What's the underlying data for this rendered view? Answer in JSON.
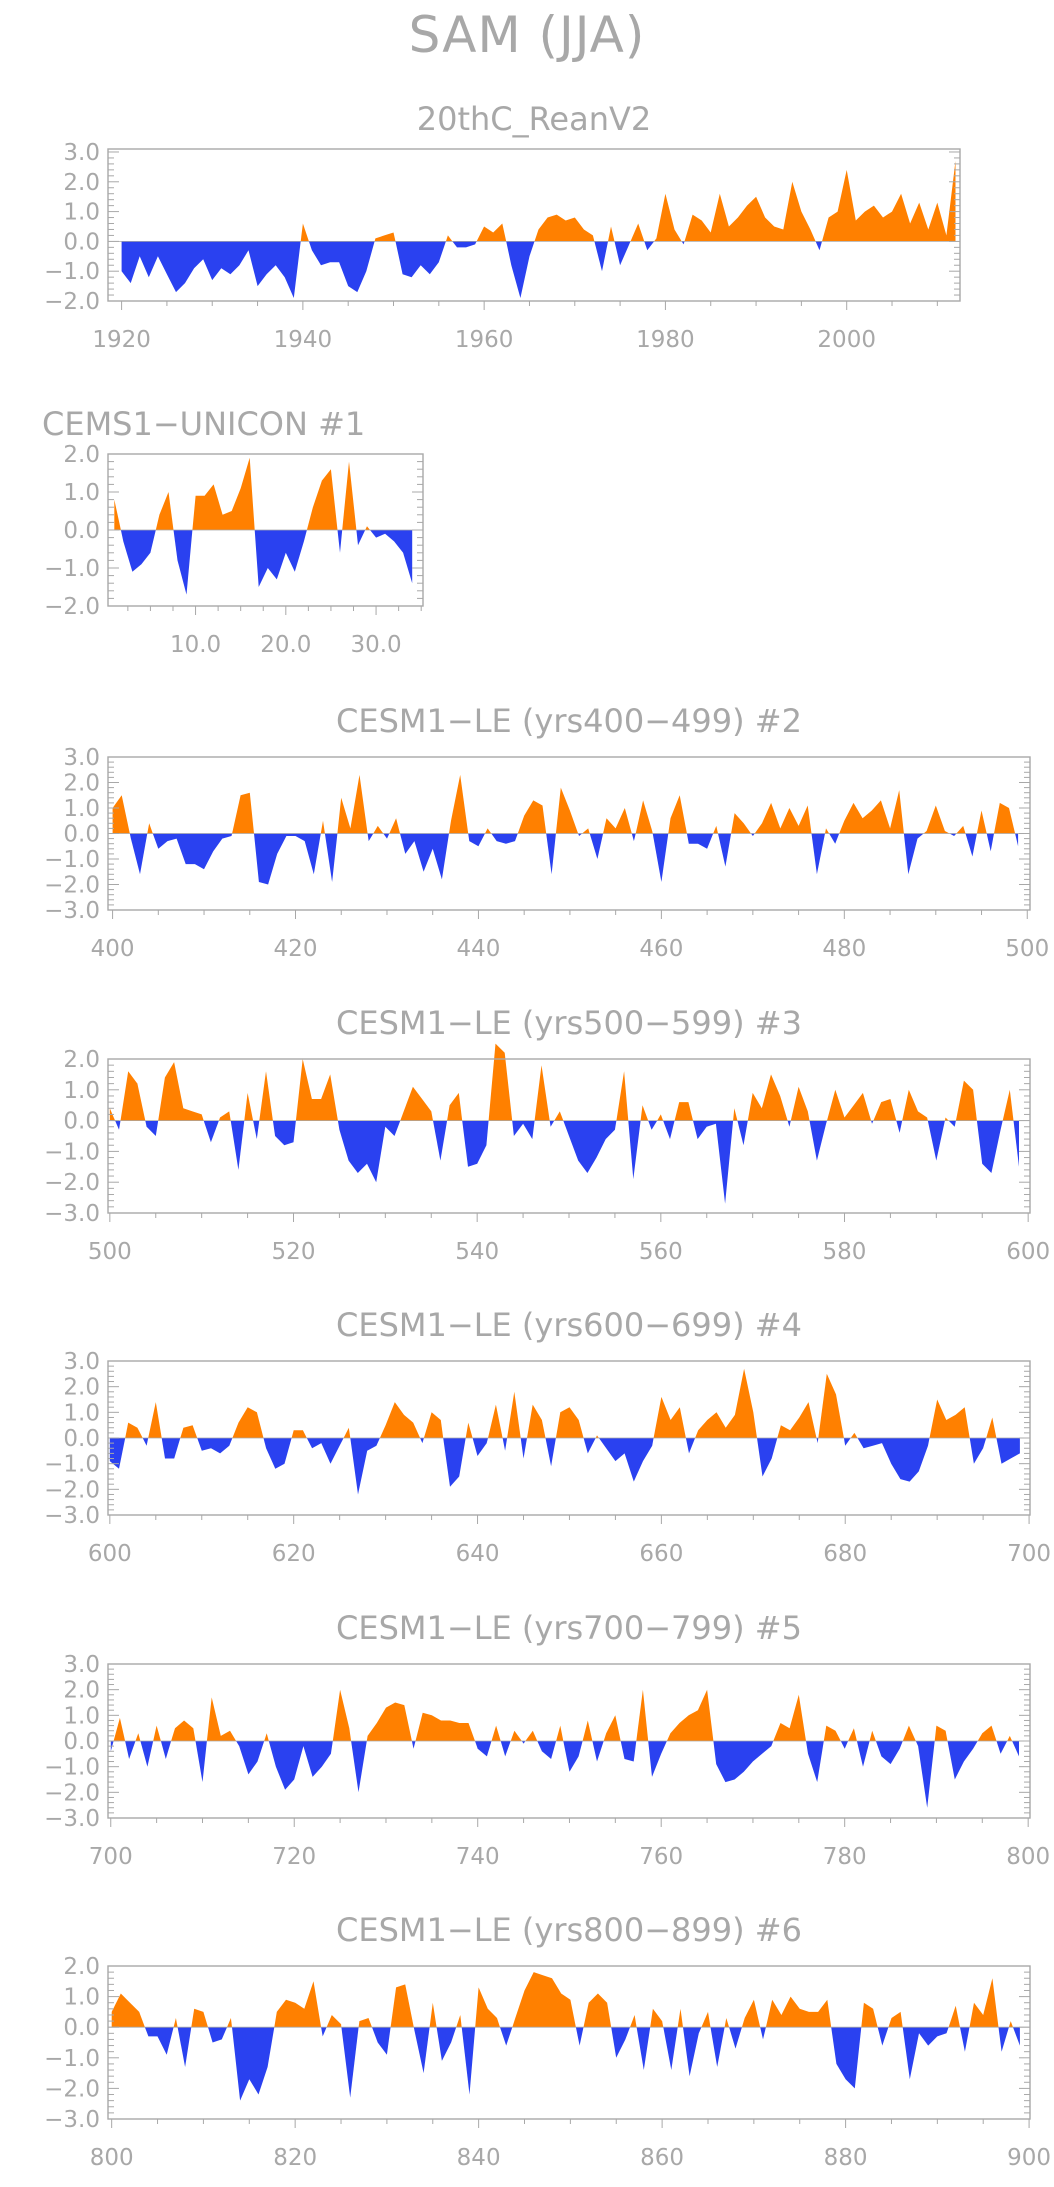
{
  "title": "SAM (JJA)",
  "colors": {
    "positive": "#ff8000",
    "negative": "#2a41f0",
    "axis": "#a8a8a8"
  },
  "chart_data": [
    {
      "type": "area",
      "title": "20thC_ReanV2",
      "title_align": "center",
      "xticks": [
        1920,
        1940,
        1960,
        1980,
        2000
      ],
      "xtick_labels": [
        "1920",
        "1940",
        "1960",
        "1980",
        "2000"
      ],
      "xlim": [
        1918.5,
        2012.5
      ],
      "yticks": [
        3.0,
        2.0,
        1.0,
        0.0,
        -1.0,
        -2.0
      ],
      "ytick_labels": [
        "3.0",
        "2.0",
        "1.0",
        "0.0",
        "−1.0",
        "−2.0"
      ],
      "ylim": [
        -2.0,
        3.1
      ],
      "x_start": 1920,
      "values": [
        -1.0,
        -1.4,
        -0.5,
        -1.2,
        -0.5,
        -1.1,
        -1.7,
        -1.4,
        -0.9,
        -0.6,
        -1.3,
        -0.9,
        -1.1,
        -0.8,
        -0.3,
        -1.5,
        -1.1,
        -0.8,
        -1.2,
        -1.9,
        0.6,
        -0.3,
        -0.8,
        -0.7,
        -0.7,
        -1.5,
        -1.7,
        -1.0,
        0.1,
        0.2,
        0.3,
        -1.1,
        -1.2,
        -0.8,
        -1.1,
        -0.7,
        0.2,
        -0.2,
        -0.2,
        -0.1,
        0.5,
        0.3,
        0.6,
        -0.8,
        -1.9,
        -0.5,
        0.4,
        0.8,
        0.9,
        0.7,
        0.8,
        0.4,
        0.2,
        -1.0,
        0.5,
        -0.8,
        -0.1,
        0.6,
        -0.3,
        0.1,
        1.6,
        0.4,
        -0.1,
        0.9,
        0.7,
        0.3,
        1.6,
        0.5,
        0.8,
        1.2,
        1.5,
        0.8,
        0.5,
        0.4,
        2.0,
        1.0,
        0.4,
        -0.3,
        0.8,
        1.0,
        2.4,
        0.7,
        1.0,
        1.2,
        0.8,
        1.0,
        1.6,
        0.6,
        1.3,
        0.4,
        1.3,
        0.2,
        2.7
      ]
    },
    {
      "type": "area",
      "title": "CEMS1−UNICON           #1",
      "title_align": "left",
      "xticks": [
        10,
        20,
        30
      ],
      "xtick_labels": [
        "10.0",
        "20.0",
        "30.0"
      ],
      "xlim": [
        0.3,
        35.2
      ],
      "yticks": [
        2.0,
        1.0,
        0.0,
        -1.0,
        -2.0
      ],
      "ytick_labels": [
        "2.0",
        "1.0",
        "0.0",
        "−1.0",
        "−2.0"
      ],
      "ylim": [
        -2.0,
        2.0
      ],
      "x_start": 1,
      "values": [
        0.8,
        -0.3,
        -1.1,
        -0.9,
        -0.6,
        0.4,
        1.0,
        -0.8,
        -1.7,
        0.9,
        0.9,
        1.2,
        0.4,
        0.5,
        1.1,
        1.9,
        -1.5,
        -1.0,
        -1.3,
        -0.6,
        -1.1,
        -0.3,
        0.6,
        1.3,
        1.6,
        -0.6,
        1.8,
        -0.4,
        0.1,
        -0.2,
        -0.1,
        -0.3,
        -0.6,
        -1.4
      ]
    },
    {
      "type": "area",
      "title": "CESM1−LE (yrs400−499) #2",
      "title_align": "center",
      "xticks": [
        400,
        420,
        440,
        460,
        480,
        500
      ],
      "xtick_labels": [
        "400",
        "420",
        "440",
        "460",
        "480",
        "500"
      ],
      "xlim": [
        399.5,
        500.3
      ],
      "yticks": [
        3.0,
        2.0,
        1.0,
        0.0,
        -1.0,
        -2.0,
        -3.0
      ],
      "ytick_labels": [
        "3.0",
        "2.0",
        "1.0",
        "0.0",
        "−1.0",
        "−2.0",
        "−3.0"
      ],
      "ylim": [
        -3.0,
        3.0
      ],
      "x_start": 400,
      "values": [
        1.0,
        1.5,
        -0.2,
        -1.6,
        0.4,
        -0.6,
        -0.3,
        -0.2,
        -1.2,
        -1.2,
        -1.4,
        -0.7,
        -0.2,
        -0.1,
        1.5,
        1.6,
        -1.9,
        -2.0,
        -0.8,
        -0.1,
        -0.1,
        -0.3,
        -1.6,
        0.5,
        -1.9,
        1.4,
        0.2,
        2.3,
        -0.3,
        0.3,
        -0.2,
        0.6,
        -0.8,
        -0.3,
        -1.5,
        -0.6,
        -1.8,
        0.5,
        2.3,
        -0.3,
        -0.5,
        0.2,
        -0.3,
        -0.4,
        -0.3,
        0.7,
        1.3,
        1.1,
        -1.6,
        1.8,
        0.9,
        -0.1,
        0.2,
        -1.0,
        0.6,
        0.2,
        1.0,
        -0.3,
        1.3,
        0.1,
        -1.9,
        0.6,
        1.5,
        -0.4,
        -0.4,
        -0.6,
        0.3,
        -1.3,
        0.8,
        0.4,
        -0.1,
        0.4,
        1.2,
        0.2,
        1.0,
        0.3,
        1.1,
        -1.6,
        0.2,
        -0.4,
        0.5,
        1.2,
        0.6,
        0.9,
        1.3,
        0.2,
        1.7,
        -1.6,
        -0.2,
        0.1,
        1.1,
        0.1,
        -0.1,
        0.3,
        -0.9,
        0.9,
        -0.7,
        1.2,
        1.0,
        -0.5
      ]
    },
    {
      "type": "area",
      "title": "CESM1−LE (yrs500−599) #3",
      "title_align": "center",
      "xticks": [
        500,
        520,
        540,
        560,
        580,
        600
      ],
      "xtick_labels": [
        "500",
        "520",
        "540",
        "560",
        "580",
        "600"
      ],
      "xlim": [
        499.8,
        600.2
      ],
      "yticks": [
        2.0,
        1.0,
        0.0,
        -1.0,
        -2.0,
        -3.0
      ],
      "ytick_labels": [
        "2.0",
        "1.0",
        "0.0",
        "−1.0",
        "−2.0",
        "−3.0"
      ],
      "ylim": [
        -3.0,
        2.0
      ],
      "x_start": 500,
      "values": [
        0.4,
        -0.3,
        1.6,
        1.2,
        -0.2,
        -0.5,
        1.4,
        1.9,
        0.4,
        0.3,
        0.2,
        -0.7,
        0.1,
        0.3,
        -1.6,
        0.9,
        -0.6,
        1.6,
        -0.5,
        -0.8,
        -0.7,
        2.0,
        0.7,
        0.7,
        1.5,
        -0.3,
        -1.3,
        -1.7,
        -1.4,
        -2.0,
        -0.2,
        -0.5,
        0.3,
        1.1,
        0.7,
        0.3,
        -1.3,
        0.5,
        0.9,
        -1.5,
        -1.4,
        -0.8,
        2.5,
        2.2,
        -0.5,
        -0.1,
        -0.6,
        1.8,
        -0.2,
        0.3,
        -0.5,
        -1.3,
        -1.7,
        -1.2,
        -0.6,
        -0.3,
        1.6,
        -1.9,
        0.5,
        -0.3,
        0.2,
        -0.6,
        0.6,
        0.6,
        -0.6,
        -0.2,
        -0.1,
        -2.7,
        0.4,
        -0.8,
        0.9,
        0.4,
        1.5,
        0.8,
        -0.2,
        1.1,
        0.3,
        -1.3,
        -0.1,
        1.0,
        0.1,
        0.5,
        0.9,
        -0.1,
        0.6,
        0.7,
        -0.4,
        1.0,
        0.3,
        0.1,
        -1.3,
        0.1,
        -0.2,
        1.3,
        1.0,
        -1.4,
        -1.7,
        -0.3,
        1.0,
        -1.5
      ]
    },
    {
      "type": "area",
      "title": "CESM1−LE (yrs600−699) #4",
      "title_align": "center",
      "xticks": [
        600,
        620,
        640,
        660,
        680,
        700
      ],
      "xtick_labels": [
        "600",
        "620",
        "640",
        "660",
        "680",
        "700"
      ],
      "xlim": [
        599.8,
        700.1
      ],
      "yticks": [
        3.0,
        2.0,
        1.0,
        0.0,
        -1.0,
        -2.0,
        -3.0
      ],
      "ytick_labels": [
        "3.0",
        "2.0",
        "1.0",
        "0.0",
        "−1.0",
        "−2.0",
        "−3.0"
      ],
      "ylim": [
        -3.0,
        3.0
      ],
      "x_start": 600,
      "values": [
        -0.9,
        -1.2,
        0.6,
        0.4,
        -0.3,
        1.4,
        -0.8,
        -0.8,
        0.4,
        0.5,
        -0.5,
        -0.4,
        -0.6,
        -0.3,
        0.6,
        1.2,
        1.0,
        -0.4,
        -1.2,
        -1.0,
        0.3,
        0.3,
        -0.4,
        -0.2,
        -1.0,
        -0.3,
        0.4,
        -2.2,
        -0.5,
        -0.3,
        0.5,
        1.4,
        0.9,
        0.6,
        -0.2,
        1.0,
        0.7,
        -1.9,
        -1.5,
        0.6,
        -0.7,
        -0.2,
        1.3,
        -0.5,
        1.8,
        -0.8,
        1.3,
        0.7,
        -1.1,
        1.0,
        1.2,
        0.7,
        -0.6,
        0.1,
        -0.4,
        -0.9,
        -0.6,
        -1.7,
        -0.9,
        -0.3,
        1.6,
        0.7,
        1.2,
        -0.6,
        0.3,
        0.7,
        1.0,
        0.4,
        0.9,
        2.7,
        1.0,
        -1.5,
        -0.8,
        0.5,
        0.3,
        0.8,
        1.4,
        -0.2,
        2.5,
        1.7,
        -0.3,
        0.2,
        -0.4,
        -0.3,
        -0.2,
        -1.0,
        -1.6,
        -1.7,
        -1.3,
        -0.3,
        1.5,
        0.7,
        0.9,
        1.2,
        -1.0,
        -0.4,
        0.8,
        -1.0,
        -0.8,
        -0.6
      ]
    },
    {
      "type": "area",
      "title": "CESM1−LE (yrs700−799) #5",
      "title_align": "center",
      "xticks": [
        700,
        720,
        740,
        760,
        780,
        800
      ],
      "xtick_labels": [
        "700",
        "720",
        "740",
        "760",
        "780",
        "800"
      ],
      "xlim": [
        699.7,
        800.2
      ],
      "yticks": [
        3.0,
        2.0,
        1.0,
        0.0,
        -1.0,
        -2.0,
        -3.0
      ],
      "ytick_labels": [
        "3.0",
        "2.0",
        "1.0",
        "0.0",
        "−1.0",
        "−2.0",
        "−3.0"
      ],
      "ylim": [
        -3.0,
        3.0
      ],
      "x_start": 700,
      "values": [
        -0.4,
        0.9,
        -0.7,
        0.3,
        -1.0,
        0.6,
        -0.7,
        0.5,
        0.8,
        0.5,
        -1.6,
        1.7,
        0.2,
        0.4,
        -0.2,
        -1.3,
        -0.8,
        0.3,
        -1.0,
        -1.9,
        -1.5,
        -0.2,
        -1.4,
        -1.0,
        -0.5,
        2.0,
        0.5,
        -2.0,
        0.2,
        0.7,
        1.3,
        1.5,
        1.4,
        -0.3,
        1.1,
        1.0,
        0.8,
        0.8,
        0.7,
        0.7,
        -0.3,
        -0.6,
        0.6,
        -0.6,
        0.4,
        -0.1,
        0.4,
        -0.4,
        -0.7,
        0.6,
        -1.2,
        -0.6,
        0.8,
        -0.8,
        0.3,
        1.0,
        -0.7,
        -0.8,
        2.0,
        -1.4,
        -0.5,
        0.3,
        0.7,
        1.0,
        1.2,
        2.0,
        -0.9,
        -1.6,
        -1.5,
        -1.2,
        -0.8,
        -0.5,
        -0.2,
        0.7,
        0.5,
        1.8,
        -0.5,
        -1.6,
        0.6,
        0.4,
        -0.3,
        0.5,
        -1.0,
        0.4,
        -0.6,
        -0.9,
        -0.3,
        0.6,
        -0.2,
        -2.6,
        0.6,
        0.4,
        -1.5,
        -0.8,
        -0.3,
        0.3,
        0.6,
        -0.5,
        0.2,
        -0.6
      ]
    },
    {
      "type": "area",
      "title": "CESM1−LE (yrs800−899) #6",
      "title_align": "center",
      "xticks": [
        800,
        820,
        840,
        860,
        880,
        900
      ],
      "xtick_labels": [
        "800",
        "820",
        "840",
        "860",
        "880",
        "900"
      ],
      "xlim": [
        799.6,
        900.1
      ],
      "yticks": [
        2.0,
        1.0,
        0.0,
        -1.0,
        -2.0,
        -3.0
      ],
      "ytick_labels": [
        "2.0",
        "1.0",
        "0.0",
        "−1.0",
        "−2.0",
        "−3.0"
      ],
      "ylim": [
        -3.0,
        2.0
      ],
      "x_start": 800,
      "values": [
        0.5,
        1.1,
        0.8,
        0.5,
        -0.3,
        -0.3,
        -0.9,
        0.3,
        -1.3,
        0.6,
        0.5,
        -0.5,
        -0.4,
        0.3,
        -2.4,
        -1.7,
        -2.2,
        -1.3,
        0.5,
        0.9,
        0.8,
        0.6,
        1.5,
        -0.3,
        0.4,
        0.1,
        -2.3,
        0.2,
        0.3,
        -0.5,
        -0.9,
        1.3,
        1.4,
        -0.1,
        -1.5,
        0.8,
        -1.1,
        -0.5,
        0.4,
        -2.2,
        1.3,
        0.6,
        0.3,
        -0.6,
        0.3,
        1.2,
        1.8,
        1.7,
        1.6,
        1.1,
        0.9,
        -0.6,
        0.8,
        1.1,
        0.8,
        -1.0,
        -0.4,
        0.4,
        -1.4,
        0.6,
        0.2,
        -1.4,
        0.6,
        -1.6,
        -0.2,
        0.5,
        -1.3,
        0.3,
        -0.7,
        0.3,
        0.9,
        -0.4,
        0.9,
        0.4,
        1.0,
        0.6,
        0.5,
        0.5,
        0.9,
        -1.2,
        -1.7,
        -2.0,
        0.8,
        0.6,
        -0.6,
        0.3,
        0.5,
        -1.7,
        -0.2,
        -0.6,
        -0.3,
        -0.2,
        0.7,
        -0.8,
        0.8,
        0.4,
        1.6,
        -0.8,
        0.2,
        -0.6
      ]
    }
  ]
}
